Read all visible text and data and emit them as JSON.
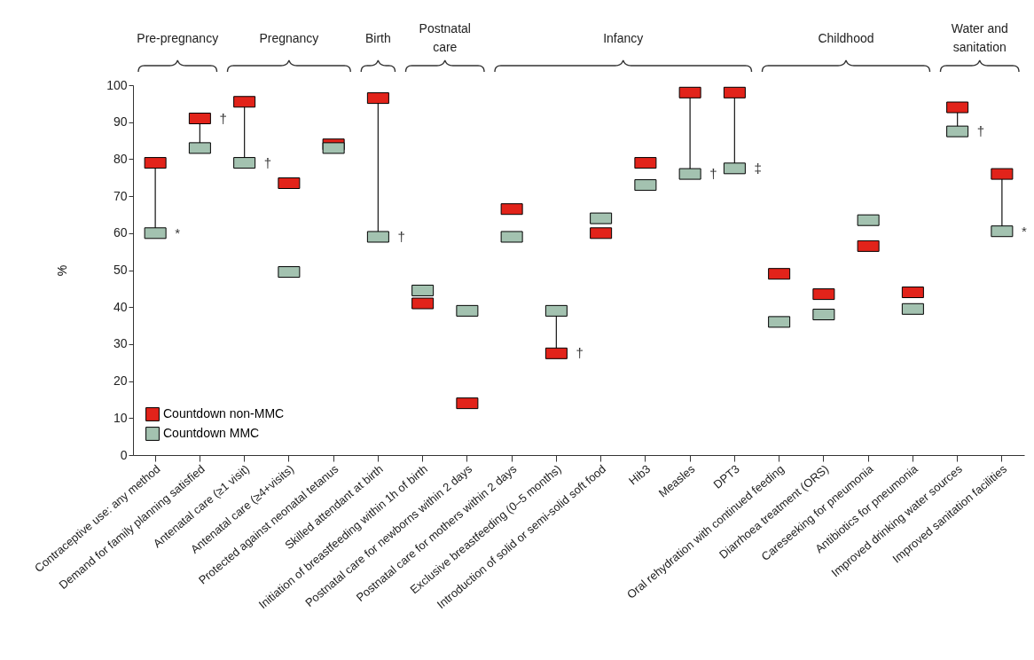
{
  "chart_data": {
    "type": "scatter",
    "ylabel": "%",
    "marker": "square",
    "legend": "bottom left",
    "grid": false,
    "ylim": [
      0,
      100
    ],
    "yticks": [
      0,
      10,
      20,
      30,
      40,
      50,
      60,
      70,
      80,
      90,
      100
    ],
    "categories": [
      "Contraceptive use: any method",
      "Demand for family planning satisfied",
      "Antenatal care (≥1 visit)",
      "Antenatal care (≥4+visits)",
      "Protected against neonatal tetanus",
      "Skilled attendant at birth",
      "Initiation of breastfeeding within 1h of birth",
      "Postnatal care for newborns within 2 days",
      "Postnatal care for mothers within 2 days",
      "Exclusive breastfeeding (0–5 months)",
      "Introduction of solid or semi-solid soft food",
      "Hib3",
      "Measles",
      "DPT3",
      "Oral rehydration with continued feeding",
      "Diarrhoea treatment (ORS)",
      "Careseeking for pneumonia",
      "Antibiotics for pneumonia",
      "Improved drinking water sources",
      "Improved sanitation facilities"
    ],
    "series": [
      {
        "name": "Countdown non-MMC",
        "color": "#e2231a",
        "values": [
          79,
          91,
          95.5,
          73.5,
          84,
          96.5,
          41,
          14,
          66.5,
          27.5,
          60,
          79,
          98,
          98,
          49,
          43.5,
          56.5,
          44,
          94,
          76
        ]
      },
      {
        "name": "Countdown MMC",
        "color": "#a3c2b0",
        "values": [
          60,
          83,
          79,
          49.5,
          83,
          59,
          44.5,
          39,
          59,
          39,
          64,
          73,
          76,
          77.5,
          36,
          38,
          63.5,
          39.5,
          87.5,
          60.5
        ]
      }
    ],
    "annotations": [
      "Pre-pregnancy",
      "Pregnancy",
      "Birth",
      "Postnatal care",
      "Infancy",
      "Childhood",
      "Water and sanitation",
      {
        "text": "*",
        "x": "Contraceptive use: any method",
        "y": 60
      },
      {
        "text": "†",
        "x": "Demand for family planning satisfied",
        "y": 91
      },
      {
        "text": "†",
        "x": "Antenatal care (≥1 visit)",
        "y": 79
      },
      {
        "text": "†",
        "x": "Skilled attendant at birth",
        "y": 59
      },
      {
        "text": "†",
        "x": "Exclusive breastfeeding (0–5 months)",
        "y": 27.5
      },
      {
        "text": "†",
        "x": "Measles",
        "y": 76
      },
      {
        "text": "‡",
        "x": "DPT3",
        "y": 77.5
      },
      {
        "text": "†",
        "x": "Improved drinking water sources",
        "y": 87.5
      },
      {
        "text": "*",
        "x": "Improved sanitation facilities",
        "y": 60.5
      }
    ]
  }
}
